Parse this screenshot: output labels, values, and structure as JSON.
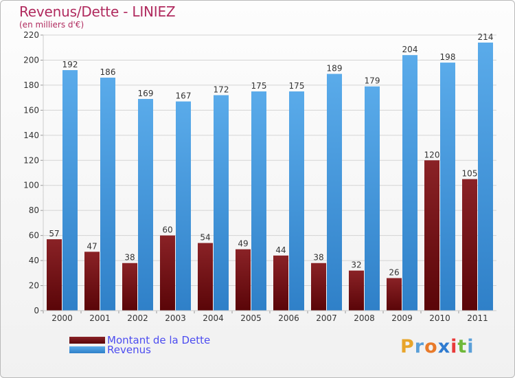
{
  "header": {
    "title": "Revenus/Dette - LINIEZ",
    "subtitle": "(en milliers d'€)"
  },
  "legend": [
    {
      "label": "Montant de la Dette",
      "color": "#7a1518"
    },
    {
      "label": "Revenus",
      "color": "#4f9fe0"
    }
  ],
  "logo": {
    "text": "Proxiti",
    "letters": [
      "P",
      "r",
      "o",
      "x",
      "i",
      "t",
      "i"
    ],
    "colors": [
      "#e8a52a",
      "#5a9fd8",
      "#e87a2a",
      "#2f7bd0",
      "#e83a3a",
      "#6fb83a",
      "#5a9fd8"
    ]
  },
  "chart_data": {
    "type": "bar",
    "categories": [
      "2000",
      "2001",
      "2002",
      "2003",
      "2004",
      "2005",
      "2006",
      "2007",
      "2008",
      "2009",
      "2010",
      "2011"
    ],
    "series": [
      {
        "name": "Montant de la Dette",
        "values": [
          57,
          47,
          38,
          60,
          54,
          49,
          44,
          38,
          32,
          26,
          120,
          105
        ],
        "color": "#7a1518"
      },
      {
        "name": "Revenus",
        "values": [
          192,
          186,
          169,
          167,
          172,
          175,
          175,
          189,
          179,
          204,
          198,
          214
        ],
        "color": "#4f9fe0"
      }
    ],
    "yticks": [
      0,
      20,
      40,
      60,
      80,
      100,
      120,
      140,
      160,
      180,
      200,
      220
    ],
    "ylim": [
      0,
      220
    ],
    "grid": true
  }
}
